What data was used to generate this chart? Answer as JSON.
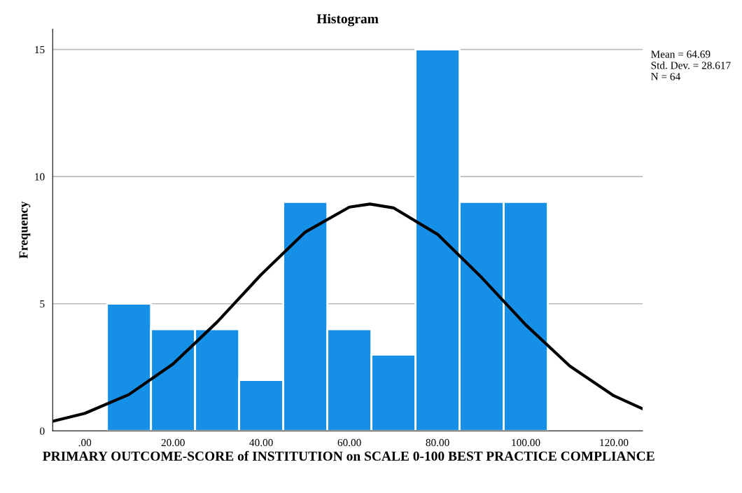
{
  "chart_data": {
    "type": "histogram",
    "title": "Histogram",
    "xlabel": "PRIMARY OUTCOME-SCORE of INSTITUTION on SCALE 0-100 BEST PRACTICE COMPLIANCE",
    "ylabel": "Frequency",
    "bins": [
      5,
      15,
      25,
      35,
      45,
      55,
      65,
      75,
      85,
      95,
      105
    ],
    "values": [
      5,
      4,
      4,
      2,
      9,
      4,
      3,
      15,
      9,
      9
    ],
    "color": "#1690e6",
    "series": [
      {
        "type": "line",
        "color": "#000000",
        "x": [
          -7.3,
          0,
          10,
          20,
          30,
          40,
          50,
          60,
          64.69,
          70,
          80,
          90,
          100,
          110,
          120,
          126.5
        ],
        "values": [
          0.38,
          0.69,
          1.43,
          2.63,
          4.28,
          6.15,
          7.82,
          8.8,
          8.92,
          8.77,
          7.73,
          6.03,
          4.17,
          2.55,
          1.38,
          0.87
        ]
      }
    ],
    "xlim": [
      -7.3,
      126.5
    ],
    "xticks": [
      {
        "value": 0,
        "label": ".00"
      },
      {
        "value": 20,
        "label": "20.00"
      },
      {
        "value": 40,
        "label": "40.00"
      },
      {
        "value": 60,
        "label": "60.00"
      },
      {
        "value": 80,
        "label": "80.00"
      },
      {
        "value": 100,
        "label": "100.00"
      },
      {
        "value": 120,
        "label": "120.00"
      }
    ],
    "ylim": [
      0,
      15.8
    ],
    "yticks": [
      0,
      5,
      10,
      15
    ],
    "grid": "y",
    "annotations": [
      "Mean = 64.69\nStd. Dev. = 28.617\nN = 64"
    ]
  }
}
